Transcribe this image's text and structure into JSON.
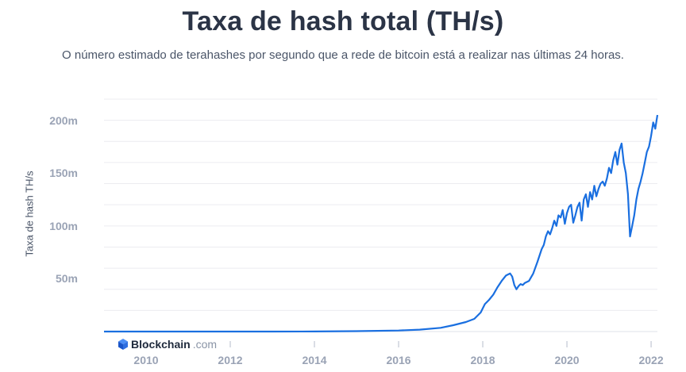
{
  "header": {
    "title": "Taxa de hash total (TH/s)",
    "subtitle": "O número estimado de terahashes por segundo que a rede de bitcoin está a realizar nas últimas 24 horas."
  },
  "brand": {
    "name": "Blockchain",
    "domain": ".com",
    "icon": "blockchain-cube-icon"
  },
  "colors": {
    "line": "#1a6fe0",
    "grid": "#ececf0",
    "tick_text": "#9aa3b5"
  },
  "chart_data": {
    "type": "line",
    "title": "Taxa de hash total (TH/s)",
    "ylabel": "Taxa de hash TH/s",
    "xlabel": "",
    "ylim": [
      0,
      220000000
    ],
    "xlim": [
      2009.0,
      2022.15
    ],
    "y_ticks": [
      {
        "value": 50000000,
        "label": "50m"
      },
      {
        "value": 100000000,
        "label": "100m"
      },
      {
        "value": 150000000,
        "label": "150m"
      },
      {
        "value": 200000000,
        "label": "200m"
      }
    ],
    "x_ticks": [
      {
        "value": 2010,
        "label": "2010"
      },
      {
        "value": 2012,
        "label": "2012"
      },
      {
        "value": 2014,
        "label": "2014"
      },
      {
        "value": 2016,
        "label": "2016"
      },
      {
        "value": 2018,
        "label": "2018"
      },
      {
        "value": 2020,
        "label": "2020"
      },
      {
        "value": 2022,
        "label": "2022"
      }
    ],
    "grid": true,
    "series": [
      {
        "x": [
          2009.0,
          2013.0,
          2014.0,
          2015.0,
          2016.0,
          2016.5,
          2017.0,
          2017.3,
          2017.6,
          2017.8,
          2017.95,
          2018.05,
          2018.15,
          2018.25,
          2018.35,
          2018.45,
          2018.55,
          2018.65,
          2018.7,
          2018.75,
          2018.8,
          2018.85,
          2018.9,
          2018.95,
          2019.0,
          2019.1,
          2019.2,
          2019.3,
          2019.4,
          2019.45,
          2019.5,
          2019.55,
          2019.6,
          2019.65,
          2019.7,
          2019.75,
          2019.8,
          2019.85,
          2019.9,
          2019.95,
          2020.0,
          2020.05,
          2020.1,
          2020.15,
          2020.2,
          2020.25,
          2020.3,
          2020.35,
          2020.4,
          2020.45,
          2020.5,
          2020.55,
          2020.6,
          2020.65,
          2020.7,
          2020.75,
          2020.8,
          2020.85,
          2020.9,
          2020.95,
          2021.0,
          2021.05,
          2021.1,
          2021.15,
          2021.2,
          2021.25,
          2021.3,
          2021.35,
          2021.4,
          2021.45,
          2021.5,
          2021.55,
          2021.6,
          2021.65,
          2021.7,
          2021.75,
          2021.8,
          2021.85,
          2021.9,
          2021.95,
          2022.0,
          2022.05,
          2022.1,
          2022.15
        ],
        "y": [
          0,
          15000,
          100000,
          400000,
          1000000,
          1800000,
          3500000,
          6000000,
          9000000,
          12000000,
          18000000,
          26000000,
          30000000,
          35000000,
          42000000,
          48000000,
          53000000,
          55000000,
          52000000,
          44000000,
          40000000,
          43000000,
          45000000,
          44000000,
          46000000,
          48000000,
          55000000,
          66000000,
          78000000,
          82000000,
          90000000,
          95000000,
          92000000,
          98000000,
          105000000,
          100000000,
          110000000,
          108000000,
          115000000,
          102000000,
          112000000,
          118000000,
          120000000,
          103000000,
          110000000,
          118000000,
          122000000,
          105000000,
          125000000,
          130000000,
          118000000,
          132000000,
          125000000,
          138000000,
          128000000,
          135000000,
          140000000,
          142000000,
          138000000,
          145000000,
          155000000,
          150000000,
          162000000,
          170000000,
          158000000,
          172000000,
          178000000,
          160000000,
          150000000,
          130000000,
          90000000,
          100000000,
          110000000,
          125000000,
          135000000,
          142000000,
          150000000,
          160000000,
          170000000,
          175000000,
          185000000,
          198000000,
          192000000,
          205000000
        ]
      }
    ]
  }
}
